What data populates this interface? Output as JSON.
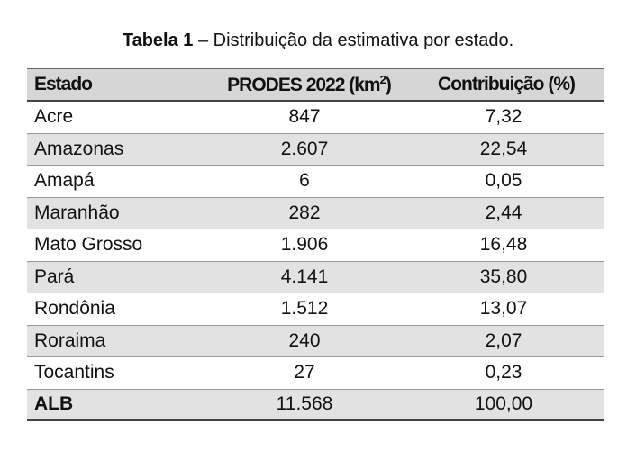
{
  "caption": {
    "label": "Tabela 1",
    "text": " – Distribuição da estimativa por estado."
  },
  "table": {
    "headers": {
      "estado": "Estado",
      "prodes_prefix": "PRODES 2022 (km",
      "prodes_sup": "2",
      "prodes_suffix": ")",
      "contrib": "Contribuição (%)"
    },
    "rows": [
      {
        "estado": "Acre",
        "prodes": "847",
        "contrib": "7,32"
      },
      {
        "estado": "Amazonas",
        "prodes": "2.607",
        "contrib": "22,54"
      },
      {
        "estado": "Amapá",
        "prodes": "6",
        "contrib": "0,05"
      },
      {
        "estado": "Maranhão",
        "prodes": "282",
        "contrib": "2,44"
      },
      {
        "estado": "Mato Grosso",
        "prodes": "1.906",
        "contrib": "16,48"
      },
      {
        "estado": "Pará",
        "prodes": "4.141",
        "contrib": "35,80"
      },
      {
        "estado": "Rondônia",
        "prodes": "1.512",
        "contrib": "13,07"
      },
      {
        "estado": "Roraima",
        "prodes": "240",
        "contrib": "2,07"
      },
      {
        "estado": "Tocantins",
        "prodes": "27",
        "contrib": "0,23"
      }
    ],
    "total": {
      "estado": "ALB",
      "prodes": "11.568",
      "contrib": "100,00"
    }
  }
}
